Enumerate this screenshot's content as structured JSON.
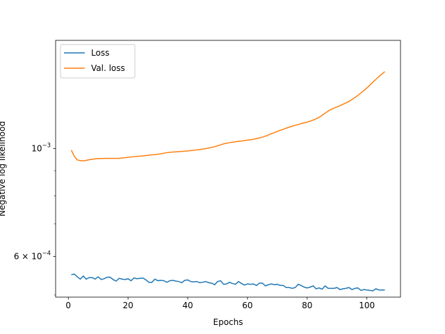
{
  "chart_data": {
    "type": "line",
    "title": "",
    "xlabel": "Epochs",
    "ylabel": "Negative log likelihood",
    "yscale": "log",
    "xlim": [
      -4.25,
      111.25
    ],
    "ylim": [
      0.000495,
      0.00167
    ],
    "x_ticks": [
      0,
      20,
      40,
      60,
      80,
      100
    ],
    "y_ticks": [
      {
        "value": 0.001,
        "base": "10",
        "exp": "−3"
      },
      {
        "value": 0.0006,
        "mantissa": "6 × ",
        "base": "10",
        "exp": "−4"
      }
    ],
    "legend_position": "upper left",
    "series": [
      {
        "name": "Loss",
        "color": "#1f77b4",
        "x": [
          1,
          2,
          3,
          4,
          5,
          6,
          7,
          8,
          9,
          10,
          11,
          12,
          13,
          14,
          15,
          16,
          17,
          18,
          19,
          20,
          21,
          22,
          23,
          24,
          25,
          26,
          27,
          28,
          29,
          30,
          31,
          32,
          33,
          34,
          35,
          36,
          37,
          38,
          39,
          40,
          41,
          42,
          43,
          44,
          45,
          46,
          47,
          48,
          49,
          50,
          51,
          52,
          53,
          54,
          55,
          56,
          57,
          58,
          59,
          60,
          61,
          62,
          63,
          64,
          65,
          66,
          67,
          68,
          69,
          70,
          71,
          72,
          73,
          74,
          75,
          76,
          77,
          78,
          79,
          80,
          81,
          82,
          83,
          84,
          85,
          86,
          87,
          88,
          89,
          90,
          91,
          92,
          93,
          94,
          95,
          96,
          97,
          98,
          99,
          100,
          101,
          102,
          103,
          104,
          105,
          106
        ],
        "values": [
          0.0005505,
          0.000552,
          0.000545,
          0.000539,
          0.000547,
          0.000539,
          0.000543,
          0.000543,
          0.000539,
          0.000545,
          0.000538,
          0.00054,
          0.000544,
          0.000544,
          0.000538,
          0.000534,
          0.000541,
          0.000539,
          0.000538,
          0.00054,
          0.000535,
          0.000542,
          0.00054,
          0.000541,
          0.000542,
          0.000537,
          0.000531,
          0.000531,
          0.000539,
          0.000535,
          0.000536,
          0.000535,
          0.000531,
          0.000535,
          0.000536,
          0.000534,
          0.000533,
          0.00053,
          0.000536,
          0.000537,
          0.000533,
          0.000532,
          0.000533,
          0.00053,
          0.000531,
          0.000533,
          0.00053,
          0.000529,
          0.000525,
          0.000533,
          0.000535,
          0.000526,
          0.000527,
          0.000531,
          0.000528,
          0.000526,
          0.000533,
          0.000528,
          0.000524,
          0.000527,
          0.000526,
          0.000527,
          0.000523,
          0.000529,
          0.000529,
          0.000522,
          0.000525,
          0.000527,
          0.000525,
          0.000526,
          0.000523,
          0.000523,
          0.000518,
          0.000518,
          0.000516,
          0.000518,
          0.000526,
          0.000523,
          0.000519,
          0.000517,
          0.000519,
          0.000522,
          0.000515,
          0.000517,
          0.000514,
          0.000522,
          0.000516,
          0.000516,
          0.000516,
          0.000518,
          0.000513,
          0.000515,
          0.000516,
          0.000518,
          0.000513,
          0.000516,
          0.000517,
          0.000511,
          0.000513,
          0.000512,
          0.000511,
          0.00051,
          0.000515,
          0.000512,
          0.000512,
          0.000512
        ]
      },
      {
        "name": "Val. loss",
        "color": "#ff7f0e",
        "x": [
          1,
          2,
          3,
          4,
          5,
          6,
          7,
          8,
          9,
          10,
          11,
          12,
          13,
          14,
          15,
          16,
          17,
          18,
          19,
          20,
          21,
          22,
          23,
          24,
          25,
          26,
          27,
          28,
          29,
          30,
          31,
          32,
          33,
          34,
          35,
          36,
          37,
          38,
          39,
          40,
          41,
          42,
          43,
          44,
          45,
          46,
          47,
          48,
          49,
          50,
          51,
          52,
          53,
          54,
          55,
          56,
          57,
          58,
          59,
          60,
          61,
          62,
          63,
          64,
          65,
          66,
          67,
          68,
          69,
          70,
          71,
          72,
          73,
          74,
          75,
          76,
          77,
          78,
          79,
          80,
          81,
          82,
          83,
          84,
          85,
          86,
          87,
          88,
          89,
          90,
          91,
          92,
          93,
          94,
          95,
          96,
          97,
          98,
          99,
          100,
          101,
          102,
          103,
          104,
          105,
          106
        ],
        "values": [
          0.000993,
          0.000965,
          0.000948,
          0.000945,
          0.000944,
          0.000946,
          0.000949,
          0.000951,
          0.000953,
          0.000954,
          0.000954,
          0.000955,
          0.000955,
          0.000955,
          0.000955,
          0.000955,
          0.000955,
          0.000957,
          0.000958,
          0.00096,
          0.000961,
          0.000963,
          0.000964,
          0.000965,
          0.000966,
          0.000968,
          0.000969,
          0.000971,
          0.000972,
          0.000974,
          0.000976,
          0.000979,
          0.000981,
          0.000983,
          0.000984,
          0.000985,
          0.000986,
          0.000987,
          0.000988,
          0.000989,
          0.000991,
          0.000992,
          0.000994,
          0.000996,
          0.000998,
          0.001,
          0.001003,
          0.001006,
          0.001009,
          0.001014,
          0.001018,
          0.001023,
          0.001026,
          0.001029,
          0.001031,
          0.001033,
          0.001035,
          0.001037,
          0.001039,
          0.001041,
          0.001043,
          0.001045,
          0.001049,
          0.001052,
          0.001056,
          0.001061,
          0.001067,
          0.001073,
          0.001079,
          0.001085,
          0.001091,
          0.001096,
          0.001102,
          0.001107,
          0.001112,
          0.001117,
          0.001121,
          0.001126,
          0.00113,
          0.001134,
          0.001139,
          0.001145,
          0.001152,
          0.00116,
          0.001171,
          0.001183,
          0.001194,
          0.001204,
          0.001212,
          0.001219,
          0.001226,
          0.001234,
          0.001242,
          0.001251,
          0.001262,
          0.001274,
          0.001287,
          0.001302,
          0.001317,
          0.001333,
          0.001351,
          0.00137,
          0.001388,
          0.001406,
          0.001423,
          0.00144
        ]
      }
    ]
  }
}
